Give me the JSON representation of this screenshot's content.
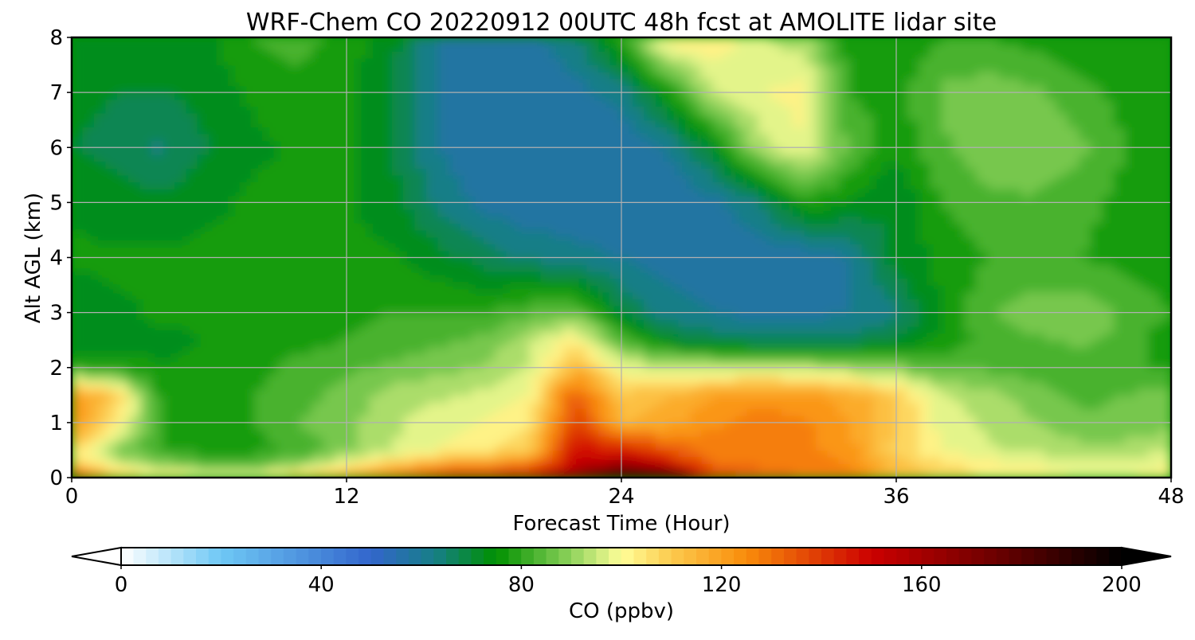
{
  "chart_data": {
    "type": "heatmap",
    "subtype": "filled-contour time-height cross-section",
    "title": "WRF-Chem CO  20220912 00UTC 48h fcst at AMOLITE lidar site",
    "xlabel": "Forecast Time (Hour)",
    "ylabel": "Alt AGL (km)",
    "xlim": [
      0,
      48
    ],
    "ylim": [
      0,
      8
    ],
    "xticks": [
      0,
      12,
      24,
      36,
      48
    ],
    "yticks": [
      0,
      1,
      2,
      3,
      4,
      5,
      6,
      7,
      8
    ],
    "grid": true,
    "x": [
      0,
      2,
      4,
      6,
      8,
      10,
      12,
      14,
      16,
      18,
      20,
      22,
      24,
      26,
      28,
      30,
      32,
      34,
      36,
      38,
      40,
      42,
      44,
      46,
      48
    ],
    "y": [
      0,
      0.25,
      0.5,
      1,
      1.5,
      2,
      2.5,
      3,
      4,
      5,
      6,
      7,
      8
    ],
    "values": [
      [
        150,
        112,
        106,
        103,
        104,
        112,
        122,
        135,
        145,
        150,
        155,
        168,
        200,
        195,
        140,
        135,
        130,
        128,
        115,
        110,
        105,
        103,
        100,
        100,
        103
      ],
      [
        112,
        98,
        88,
        84,
        84,
        90,
        100,
        110,
        118,
        122,
        126,
        150,
        160,
        150,
        130,
        128,
        128,
        125,
        112,
        106,
        102,
        100,
        98,
        98,
        100
      ],
      [
        105,
        88,
        80,
        78,
        78,
        82,
        88,
        95,
        100,
        104,
        110,
        150,
        145,
        135,
        127,
        127,
        127,
        122,
        108,
        100,
        96,
        94,
        92,
        92,
        96
      ],
      [
        125,
        104,
        78,
        76,
        80,
        85,
        88,
        94,
        98,
        100,
        104,
        140,
        115,
        118,
        124,
        127,
        126,
        120,
        110,
        98,
        94,
        90,
        86,
        86,
        88
      ],
      [
        126,
        110,
        76,
        76,
        80,
        84,
        86,
        92,
        94,
        96,
        100,
        135,
        110,
        115,
        120,
        123,
        122,
        118,
        110,
        96,
        92,
        88,
        84,
        85,
        87
      ],
      [
        80,
        78,
        75,
        76,
        78,
        82,
        84,
        86,
        88,
        90,
        95,
        115,
        98,
        96,
        95,
        95,
        94,
        92,
        88,
        84,
        84,
        82,
        80,
        80,
        80
      ],
      [
        70,
        72,
        74,
        75,
        76,
        78,
        80,
        82,
        84,
        86,
        94,
        104,
        84,
        72,
        68,
        66,
        66,
        66,
        70,
        76,
        82,
        84,
        86,
        84,
        76
      ],
      [
        72,
        74,
        76,
        76,
        76,
        76,
        78,
        80,
        80,
        80,
        84,
        86,
        70,
        62,
        60,
        58,
        58,
        60,
        64,
        76,
        84,
        88,
        88,
        84,
        80
      ],
      [
        76,
        76,
        76,
        76,
        76,
        76,
        76,
        76,
        72,
        68,
        64,
        62,
        60,
        58,
        58,
        56,
        56,
        60,
        72,
        76,
        80,
        80,
        80,
        78,
        76
      ],
      [
        74,
        72,
        72,
        74,
        76,
        76,
        76,
        72,
        64,
        58,
        56,
        56,
        55,
        55,
        58,
        64,
        78,
        74,
        70,
        80,
        84,
        84,
        82,
        78,
        76
      ],
      [
        70,
        68,
        64,
        70,
        74,
        76,
        76,
        70,
        60,
        56,
        55,
        55,
        56,
        60,
        72,
        92,
        100,
        84,
        76,
        84,
        88,
        90,
        86,
        80,
        76
      ],
      [
        72,
        70,
        70,
        72,
        76,
        78,
        76,
        70,
        60,
        56,
        56,
        58,
        62,
        76,
        94,
        100,
        102,
        80,
        78,
        86,
        88,
        86,
        82,
        78,
        76
      ],
      [
        74,
        72,
        72,
        74,
        80,
        82,
        78,
        72,
        60,
        56,
        58,
        64,
        80,
        104,
        104,
        96,
        92,
        76,
        76,
        80,
        80,
        78,
        76,
        76,
        76
      ]
    ],
    "colorbar": {
      "label": "CO  (ppbv)",
      "min": 0,
      "max": 200,
      "ticks": [
        0,
        40,
        80,
        120,
        160,
        200
      ],
      "extend": "both",
      "stops": [
        {
          "v": 0,
          "c": "#ffffff"
        },
        {
          "v": 20,
          "c": "#6ec8f5"
        },
        {
          "v": 50,
          "c": "#3366cc"
        },
        {
          "v": 63,
          "c": "#167f84"
        },
        {
          "v": 75,
          "c": "#009100"
        },
        {
          "v": 90,
          "c": "#8fd25c"
        },
        {
          "v": 100,
          "c": "#ffff99"
        },
        {
          "v": 110,
          "c": "#fcca4e"
        },
        {
          "v": 125,
          "c": "#f98c0a"
        },
        {
          "v": 150,
          "c": "#cc0000"
        },
        {
          "v": 175,
          "c": "#6b0000"
        },
        {
          "v": 200,
          "c": "#000000"
        }
      ]
    }
  }
}
